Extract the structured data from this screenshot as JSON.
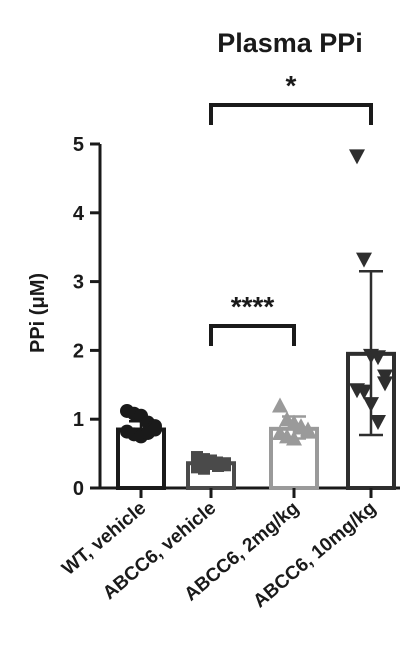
{
  "chart_data": {
    "type": "bar",
    "title": "Plasma PPi",
    "ylabel": "PPi (μM)",
    "xlabel": "",
    "ylim": [
      0,
      5
    ],
    "yticks": [
      0,
      1,
      2,
      3,
      4,
      5
    ],
    "grid": false,
    "categories": [
      "WT, vehicle",
      "ABCC6, vehicle",
      "ABCC6, 2mg/kg",
      "ABCC6, 10mg/kg"
    ],
    "series": [
      {
        "values": [
          0.85,
          0.36,
          0.86,
          1.95
        ],
        "error_low": [
          0.75,
          0.28,
          0.72,
          0.77
        ],
        "error_high": [
          0.97,
          0.44,
          1.04,
          3.15
        ],
        "bar_colors": [
          "#1a1a1a",
          "#4a4a4a",
          "#9a9a9a",
          "#2e2e2e"
        ],
        "points": [
          {
            "marker": "circle",
            "values": [
              1.12,
              1.08,
              1.05,
              0.95,
              0.9,
              0.82,
              0.78,
              0.75,
              0.8,
              0.85
            ]
          },
          {
            "marker": "square",
            "values": [
              0.45,
              0.42,
              0.38,
              0.35,
              0.33,
              0.3,
              0.28,
              0.4,
              0.32,
              0.36
            ]
          },
          {
            "marker": "triangle-up",
            "values": [
              1.2,
              1.0,
              0.95,
              0.9,
              0.85,
              0.8,
              0.75,
              0.72,
              0.88,
              0.82
            ]
          },
          {
            "marker": "triangle-down",
            "values": [
              4.82,
              3.32,
              1.92,
              1.9,
              1.62,
              1.42,
              1.4,
              1.22,
              0.96,
              1.52
            ]
          }
        ]
      }
    ],
    "significance": [
      {
        "from": 1,
        "to": 2,
        "label": "****"
      },
      {
        "from": 1,
        "to": 3,
        "label": "*"
      }
    ]
  }
}
